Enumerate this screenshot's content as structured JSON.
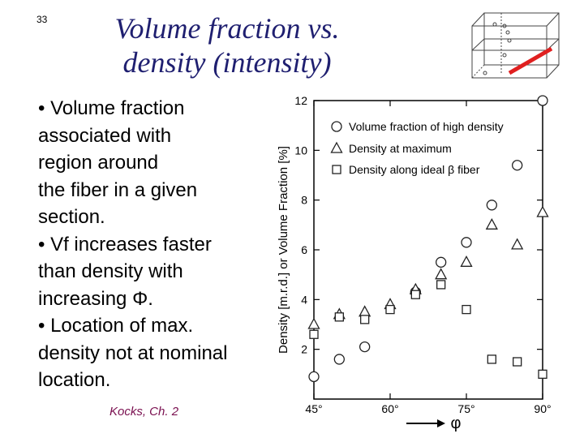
{
  "slide": {
    "number": "33",
    "title_line1": "Volume fraction vs.",
    "title_line2": "density (intensity)",
    "bullets": [
      "• Volume fraction",
      "associated with",
      "region around",
      "the fiber in a given",
      "section.",
      "• Vf increases faster",
      "than density with",
      "increasing Φ.",
      "• Location of max.",
      "density not at nominal",
      "location."
    ],
    "reference": "Kocks, Ch. 2"
  },
  "colors": {
    "title": "#1f1f70",
    "reference": "#7a1050",
    "arrow": "#e02020"
  },
  "chart_data": {
    "type": "scatter",
    "ylabel": "Density [m.r.d.] or Volume Fraction [%]",
    "xlabel": "φ",
    "xlim": [
      45,
      90
    ],
    "ylim": [
      0,
      12
    ],
    "x_ticks": [
      45,
      60,
      75,
      90
    ],
    "x_tick_labels": [
      "45°",
      "60°",
      "75°",
      "90°"
    ],
    "y_ticks": [
      2,
      4,
      6,
      8,
      10,
      12
    ],
    "y_tick_labels": [
      "2",
      "4",
      "6",
      "8",
      "10",
      "12"
    ],
    "legend_position": "top-right",
    "series": [
      {
        "name": "Volume fraction of high density",
        "marker": "circle",
        "points": [
          [
            45,
            0.9
          ],
          [
            50,
            1.6
          ],
          [
            55,
            2.1
          ],
          [
            65,
            4.3
          ],
          [
            70,
            5.5
          ],
          [
            75,
            6.3
          ],
          [
            80,
            7.8
          ],
          [
            85,
            9.4
          ],
          [
            90,
            12.0
          ]
        ]
      },
      {
        "name": "Density at maximum",
        "marker": "triangle",
        "points": [
          [
            45,
            3.0
          ],
          [
            50,
            3.4
          ],
          [
            55,
            3.5
          ],
          [
            60,
            3.8
          ],
          [
            65,
            4.4
          ],
          [
            70,
            5.0
          ],
          [
            75,
            5.5
          ],
          [
            80,
            7.0
          ],
          [
            85,
            6.2
          ],
          [
            90,
            7.5
          ]
        ]
      },
      {
        "name": "Density along ideal β fiber",
        "marker": "square",
        "points": [
          [
            45,
            2.6
          ],
          [
            50,
            3.3
          ],
          [
            55,
            3.2
          ],
          [
            60,
            3.6
          ],
          [
            65,
            4.2
          ],
          [
            70,
            4.6
          ],
          [
            75,
            3.6
          ],
          [
            80,
            1.6
          ],
          [
            85,
            1.5
          ],
          [
            90,
            1.0
          ]
        ]
      }
    ]
  }
}
